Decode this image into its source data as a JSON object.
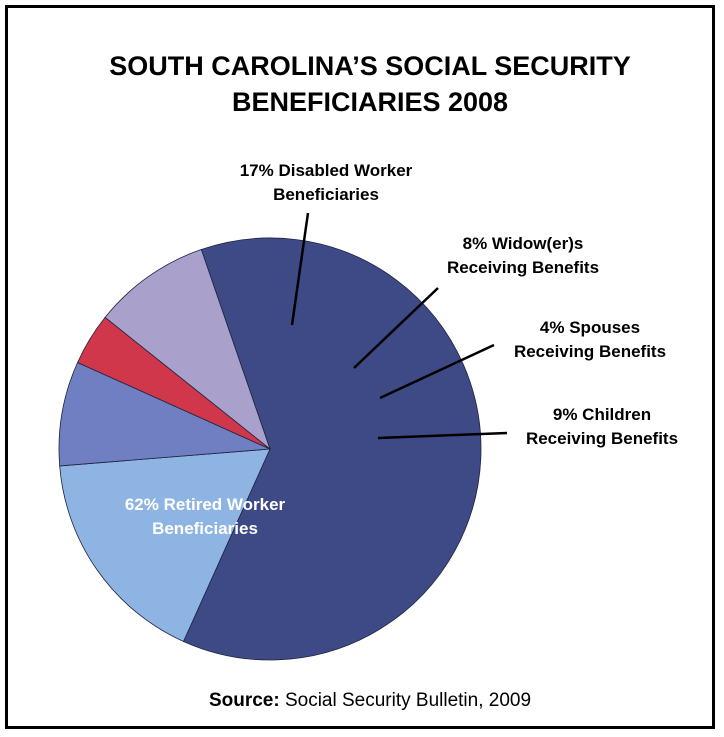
{
  "chart_data": {
    "type": "pie",
    "title": "SOUTH CAROLINA’S SOCIAL SECURITY\nBENEFICIARIES 2008",
    "slices": [
      {
        "name": "Retired Worker Beneficiaries",
        "value": 62,
        "label_lines": [
          "62% Retired Worker",
          "Beneficiaries"
        ],
        "color": "#3d4a86"
      },
      {
        "name": "Disabled Worker Beneficiaries",
        "value": 17,
        "label_lines": [
          "17% Disabled Worker",
          "Beneficiaries"
        ],
        "color": "#8db4e2"
      },
      {
        "name": "Widow(er)s Receiving Benefits",
        "value": 8,
        "label_lines": [
          "8% Widow(er)s",
          "Receiving Benefits"
        ],
        "color": "#6f7fc1"
      },
      {
        "name": "Spouses Receiving Benefits",
        "value": 4,
        "label_lines": [
          "4% Spouses",
          "Receiving Benefits"
        ],
        "color": "#d0374a"
      },
      {
        "name": "Children Receiving Benefits",
        "value": 9,
        "label_lines": [
          "9% Children",
          "Receiving Benefits"
        ],
        "color": "#a9a0cc"
      }
    ],
    "source_label": "Source:",
    "source_text": "Social Security Bulletin, 2009"
  }
}
